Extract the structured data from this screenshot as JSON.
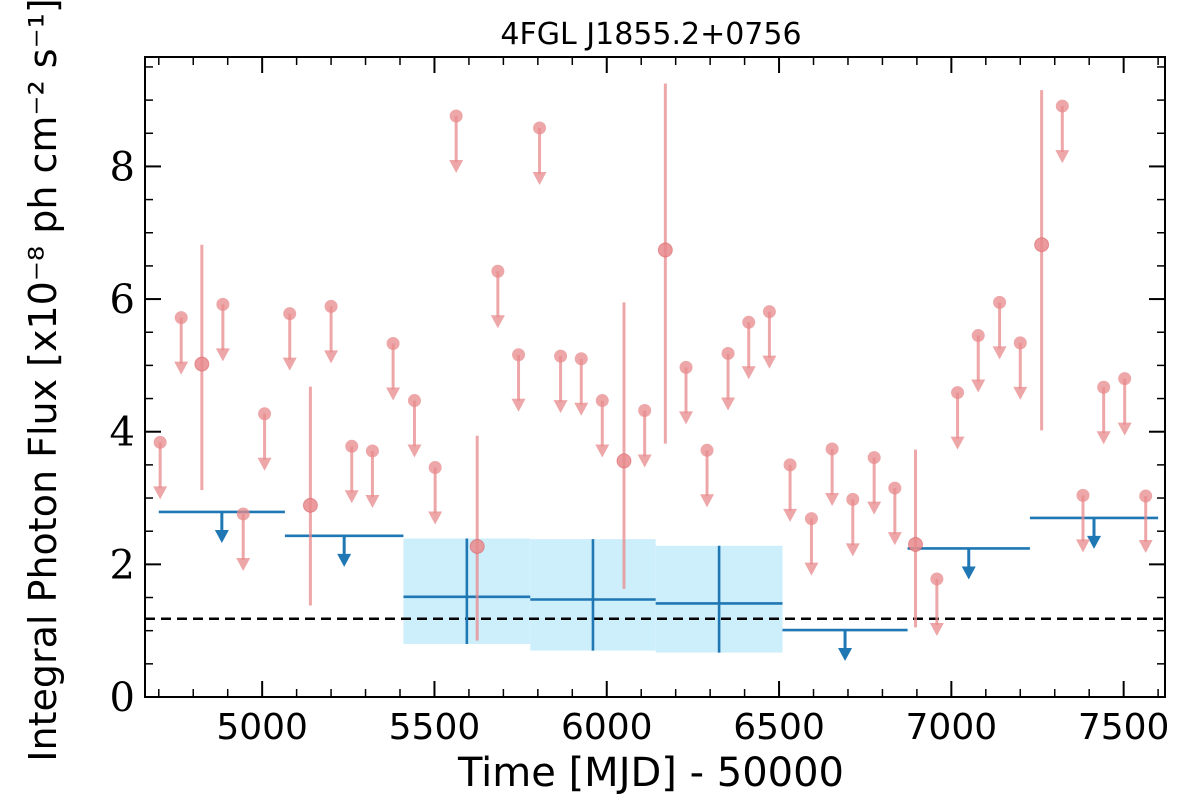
{
  "chart_data": {
    "type": "scatter",
    "title": "4FGL J1855.2+0756",
    "xlabel": "Time [MJD] - 50000",
    "ylabel": "Integral Photon Flux [x10⁻⁸ ph cm⁻² s⁻¹]",
    "xlim": [
      4660,
      7620
    ],
    "ylim": [
      0,
      9.65
    ],
    "xticks": [
      5000,
      5500,
      6000,
      6500,
      7000,
      7500
    ],
    "yticks": [
      0,
      2,
      4,
      6,
      8
    ],
    "grid": false,
    "reference_line": {
      "y": 1.18,
      "style": "dashed",
      "color": "#000000"
    },
    "colors": {
      "short_bins": "#e8898c",
      "long_bins": "#1f77b4",
      "band": "#cdeefb"
    },
    "series": [
      {
        "upper_limits": [
          {
            "x": 4704,
            "y": 3.84
          },
          {
            "x": 4765,
            "y": 5.72
          },
          {
            "x": 4886,
            "y": 5.92
          },
          {
            "x": 4945,
            "y": 2.76
          },
          {
            "x": 5007,
            "y": 4.27
          },
          {
            "x": 5080,
            "y": 5.78
          },
          {
            "x": 5200,
            "y": 5.89
          },
          {
            "x": 5260,
            "y": 3.78
          },
          {
            "x": 5320,
            "y": 3.71
          },
          {
            "x": 5380,
            "y": 5.33
          },
          {
            "x": 5442,
            "y": 4.47
          },
          {
            "x": 5502,
            "y": 3.46
          },
          {
            "x": 5563,
            "y": 8.76
          },
          {
            "x": 5684,
            "y": 6.42
          },
          {
            "x": 5744,
            "y": 5.16
          },
          {
            "x": 5805,
            "y": 8.58
          },
          {
            "x": 5866,
            "y": 5.14
          },
          {
            "x": 5926,
            "y": 5.1
          },
          {
            "x": 5987,
            "y": 4.47
          },
          {
            "x": 6110,
            "y": 4.32
          },
          {
            "x": 6230,
            "y": 4.97
          },
          {
            "x": 6291,
            "y": 3.72
          },
          {
            "x": 6352,
            "y": 5.18
          },
          {
            "x": 6412,
            "y": 5.65
          },
          {
            "x": 6472,
            "y": 5.81
          },
          {
            "x": 6532,
            "y": 3.5
          },
          {
            "x": 6594,
            "y": 2.69
          },
          {
            "x": 6654,
            "y": 3.74
          },
          {
            "x": 6714,
            "y": 2.98
          },
          {
            "x": 6776,
            "y": 3.61
          },
          {
            "x": 6836,
            "y": 3.15
          },
          {
            "x": 6958,
            "y": 1.78
          },
          {
            "x": 7018,
            "y": 4.59
          },
          {
            "x": 7078,
            "y": 5.45
          },
          {
            "x": 7140,
            "y": 5.95
          },
          {
            "x": 7200,
            "y": 5.34
          },
          {
            "x": 7322,
            "y": 8.91
          },
          {
            "x": 7382,
            "y": 3.04
          },
          {
            "x": 7442,
            "y": 4.67
          },
          {
            "x": 7503,
            "y": 4.8
          },
          {
            "x": 7564,
            "y": 3.03
          }
        ],
        "detections": [
          {
            "x": 4825,
            "y": 5.02,
            "ylo": 3.12,
            "yhi": 6.82
          },
          {
            "x": 5140,
            "y": 2.89,
            "ylo": 1.38,
            "yhi": 4.68
          },
          {
            "x": 5624,
            "y": 2.27,
            "ylo": 0.85,
            "yhi": 3.94
          },
          {
            "x": 6050,
            "y": 3.56,
            "ylo": 1.63,
            "yhi": 5.95
          },
          {
            "x": 6170,
            "y": 6.74,
            "ylo": 3.82,
            "yhi": 9.25
          },
          {
            "x": 6896,
            "y": 2.3,
            "ylo": 1.05,
            "yhi": 3.73
          },
          {
            "x": 7262,
            "y": 6.82,
            "ylo": 4.02,
            "yhi": 9.15
          }
        ]
      },
      {
        "upper_limits": [
          {
            "x0": 4700,
            "x1": 5066,
            "y": 2.79
          },
          {
            "x0": 5066,
            "x1": 5410,
            "y": 2.43
          },
          {
            "x0": 6510,
            "x1": 6873,
            "y": 1.01
          },
          {
            "x0": 6873,
            "x1": 7228,
            "y": 2.24
          },
          {
            "x0": 7228,
            "x1": 7600,
            "y": 2.7
          }
        ],
        "detections": [
          {
            "x0": 5410,
            "x1": 5778,
            "x": 5594,
            "y": 1.51,
            "ylo": 0.8,
            "yhi": 2.39
          },
          {
            "x0": 5778,
            "x1": 6142,
            "x": 5960,
            "y": 1.47,
            "ylo": 0.7,
            "yhi": 2.38
          },
          {
            "x0": 6142,
            "x1": 6510,
            "x": 6326,
            "y": 1.41,
            "ylo": 0.67,
            "yhi": 2.28
          }
        ]
      }
    ]
  }
}
